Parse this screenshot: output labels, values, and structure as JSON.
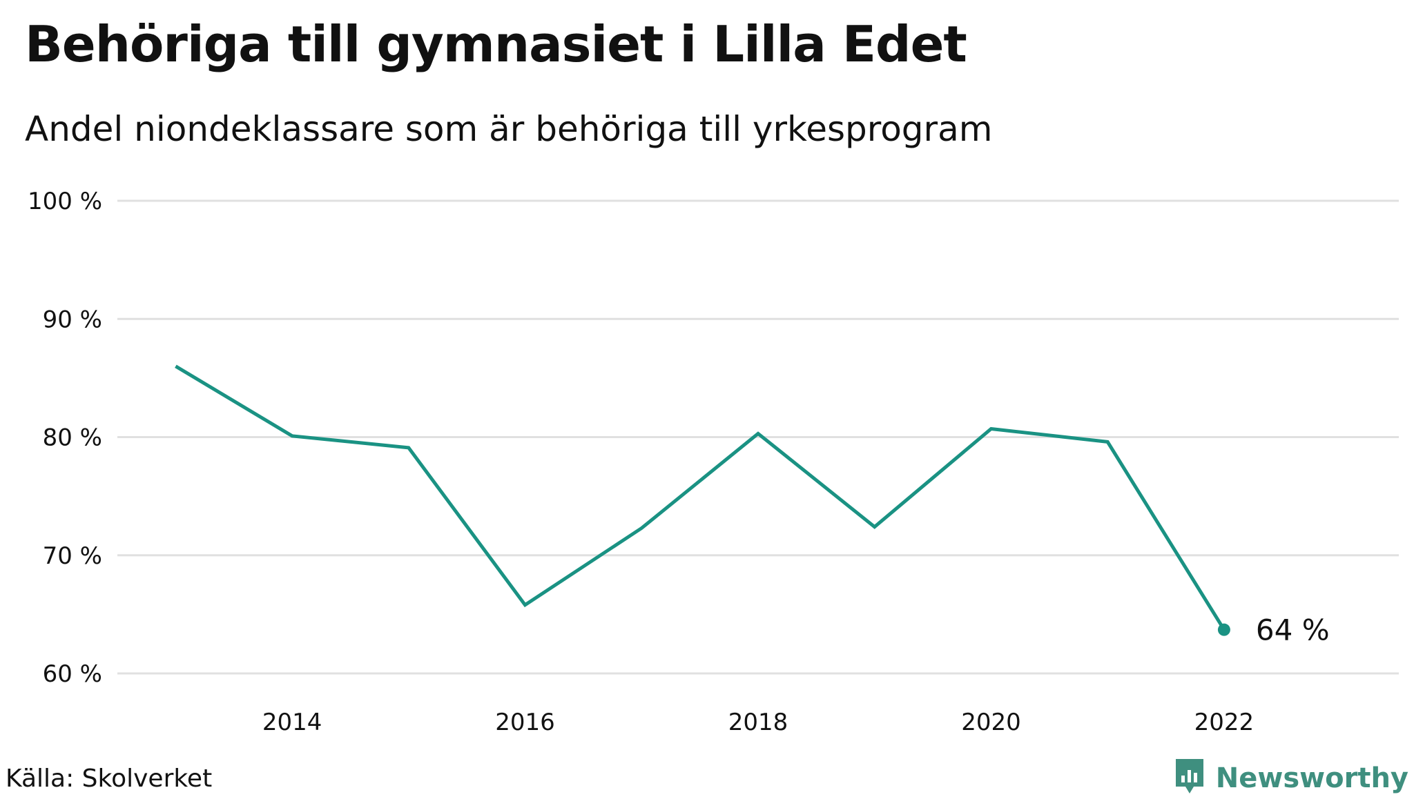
{
  "title": "Behöriga till gymnasiet i Lilla Edet",
  "subtitle": "Andel niondeklassare som är behöriga till yrkesprogram",
  "source": "Källa: Skolverket",
  "brand": {
    "name": "Newsworthy",
    "icon": "newsworthy-logo-icon",
    "color": "#3f8f7f"
  },
  "colors": {
    "line": "#1a9283",
    "grid": "#e0e0e0"
  },
  "chart_data": {
    "type": "line",
    "title": "Behöriga till gymnasiet i Lilla Edet",
    "subtitle": "Andel niondeklassare som är behöriga till yrkesprogram",
    "x": [
      2013,
      2014,
      2015,
      2016,
      2017,
      2018,
      2019,
      2020,
      2021,
      2022
    ],
    "series": [
      {
        "values": [
          86.0,
          80.1,
          79.1,
          65.8,
          72.3,
          80.3,
          72.4,
          80.7,
          79.6,
          63.7
        ]
      }
    ],
    "ylim": [
      60,
      100
    ],
    "y_ticks": [
      100,
      90,
      80,
      70,
      60
    ],
    "y_tick_labels": [
      "100 %",
      "90 %",
      "80 %",
      "70 %",
      "60 %"
    ],
    "x_ticks": [
      2014,
      2016,
      2018,
      2020,
      2022
    ],
    "x_tick_labels": [
      "2014",
      "2016",
      "2018",
      "2020",
      "2022"
    ],
    "end_label": "64  %",
    "grid": true,
    "legend": "none"
  }
}
